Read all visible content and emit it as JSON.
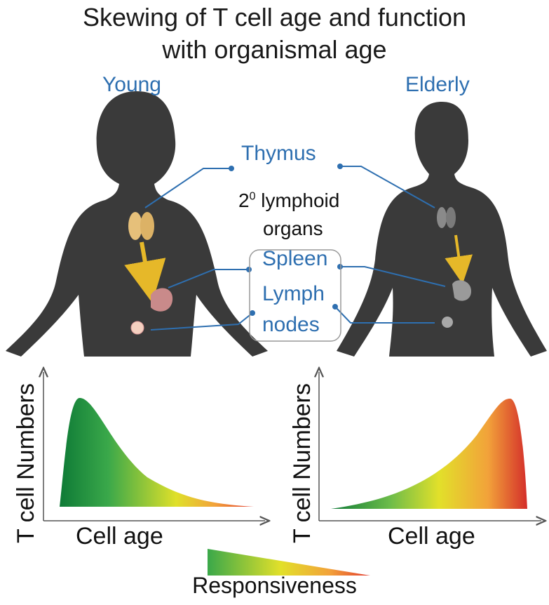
{
  "title_line1": "Skewing of T cell age and function",
  "title_line2": "with organismal age",
  "labels": {
    "young": "Young",
    "elderly": "Elderly",
    "thymus": "Thymus",
    "secondary_superscript_base": "2",
    "secondary_superscript": "0",
    "secondary_line1": "lymphoid",
    "secondary_line2": "organs",
    "spleen": "Spleen",
    "lymph_line1": "Lymph",
    "lymph_line2": "nodes"
  },
  "chart_data": [
    {
      "type": "area",
      "panel": "young",
      "xlabel": "Cell age",
      "ylabel": "T cell Numbers",
      "shape": "right-skewed (peak at young cell age)",
      "color_gradient": [
        "#1a8a3a",
        "#e2e02a",
        "#e23a2e"
      ]
    },
    {
      "type": "area",
      "panel": "elderly",
      "xlabel": "Cell age",
      "ylabel": "T cell Numbers",
      "shape": "left-skewed (peak at old cell age)",
      "color_gradient": [
        "#1a8a3a",
        "#e2e02a",
        "#e23a2e"
      ]
    }
  ],
  "legend": {
    "label": "Responsiveness",
    "colors": [
      "#3aa84a",
      "#e2e02a",
      "#e23a2e"
    ]
  },
  "colors": {
    "silhouette": "#3a3a3a",
    "label_blue": "#2e6fb0",
    "arrow": "#e6b829"
  }
}
